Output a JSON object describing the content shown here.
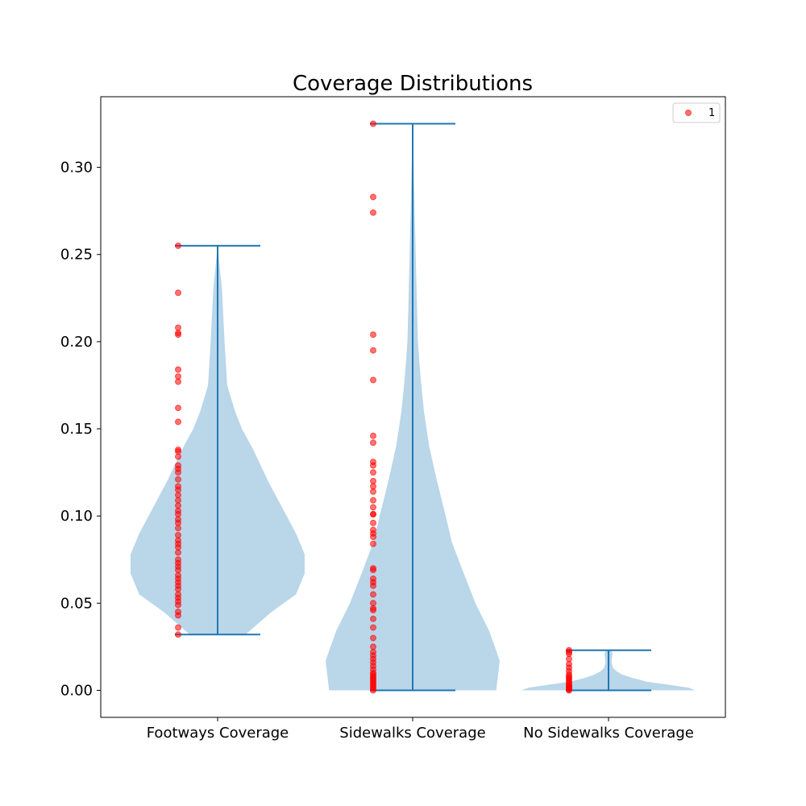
{
  "chart_data": {
    "type": "violin",
    "title": "Coverage Distributions",
    "xlabel": "",
    "ylabel": "",
    "categories": [
      "Footways Coverage",
      "Sidewalks Coverage",
      "No Sidewalks Coverage"
    ],
    "ylim": [
      -0.0155,
      0.3405
    ],
    "y_ticks": [
      0.0,
      0.05,
      0.1,
      0.15,
      0.2,
      0.25,
      0.3
    ],
    "y_tick_labels": [
      "0.00",
      "0.05",
      "0.10",
      "0.15",
      "0.20",
      "0.25",
      "0.30"
    ],
    "legend": {
      "position": "top-right",
      "entries": [
        "1"
      ]
    },
    "colors": {
      "violin_fill": "#bad6e9",
      "lines": "#1f77b4",
      "points": "#ff0000",
      "axes": "#000000"
    },
    "violins": [
      {
        "category": "Footways Coverage",
        "min": 0.032,
        "max": 0.255,
        "density_profile": [
          [
            0.032,
            0.32
          ],
          [
            0.045,
            0.62
          ],
          [
            0.055,
            0.9
          ],
          [
            0.067,
            1.0
          ],
          [
            0.078,
            1.0
          ],
          [
            0.09,
            0.9
          ],
          [
            0.105,
            0.74
          ],
          [
            0.12,
            0.58
          ],
          [
            0.138,
            0.41
          ],
          [
            0.15,
            0.28
          ],
          [
            0.16,
            0.2
          ],
          [
            0.175,
            0.11
          ],
          [
            0.2,
            0.08
          ],
          [
            0.23,
            0.05
          ],
          [
            0.255,
            0.0
          ]
        ],
        "points": [
          0.032,
          0.036,
          0.043,
          0.045,
          0.049,
          0.051,
          0.053,
          0.055,
          0.058,
          0.06,
          0.062,
          0.064,
          0.066,
          0.069,
          0.071,
          0.073,
          0.075,
          0.079,
          0.082,
          0.084,
          0.086,
          0.089,
          0.093,
          0.096,
          0.098,
          0.101,
          0.103,
          0.106,
          0.109,
          0.112,
          0.115,
          0.117,
          0.121,
          0.125,
          0.127,
          0.129,
          0.134,
          0.137,
          0.138,
          0.154,
          0.162,
          0.177,
          0.18,
          0.184,
          0.204,
          0.205,
          0.208,
          0.228,
          0.255
        ]
      },
      {
        "category": "Sidewalks Coverage",
        "min": 0.0,
        "max": 0.325,
        "density_profile": [
          [
            0.0,
            0.96
          ],
          [
            0.017,
            1.0
          ],
          [
            0.034,
            0.88
          ],
          [
            0.05,
            0.72
          ],
          [
            0.068,
            0.58
          ],
          [
            0.085,
            0.45
          ],
          [
            0.1,
            0.38
          ],
          [
            0.12,
            0.28
          ],
          [
            0.14,
            0.19
          ],
          [
            0.16,
            0.13
          ],
          [
            0.18,
            0.09
          ],
          [
            0.2,
            0.06
          ],
          [
            0.24,
            0.04
          ],
          [
            0.28,
            0.02
          ],
          [
            0.325,
            0.0
          ]
        ],
        "points": [
          0.0,
          0.001,
          0.002,
          0.003,
          0.004,
          0.005,
          0.006,
          0.007,
          0.008,
          0.009,
          0.01,
          0.012,
          0.014,
          0.016,
          0.018,
          0.02,
          0.022,
          0.025,
          0.03,
          0.036,
          0.041,
          0.046,
          0.047,
          0.05,
          0.055,
          0.06,
          0.062,
          0.064,
          0.069,
          0.07,
          0.084,
          0.088,
          0.09,
          0.092,
          0.096,
          0.101,
          0.101,
          0.105,
          0.109,
          0.114,
          0.117,
          0.12,
          0.125,
          0.129,
          0.131,
          0.142,
          0.146,
          0.178,
          0.195,
          0.204,
          0.274,
          0.283,
          0.325
        ]
      },
      {
        "category": "No Sidewalks Coverage",
        "min": 0.0,
        "max": 0.023,
        "density_profile": [
          [
            0.0,
            1.0
          ],
          [
            0.0015,
            0.92
          ],
          [
            0.003,
            0.72
          ],
          [
            0.005,
            0.44
          ],
          [
            0.007,
            0.28
          ],
          [
            0.009,
            0.16
          ],
          [
            0.011,
            0.09
          ],
          [
            0.013,
            0.05
          ],
          [
            0.016,
            0.035
          ],
          [
            0.019,
            0.04
          ],
          [
            0.021,
            0.045
          ],
          [
            0.023,
            0.03
          ]
        ],
        "points": [
          0.0,
          0.0005,
          0.001,
          0.0015,
          0.002,
          0.0025,
          0.003,
          0.004,
          0.005,
          0.006,
          0.007,
          0.008,
          0.009,
          0.011,
          0.013,
          0.015,
          0.018,
          0.021,
          0.022,
          0.023
        ]
      }
    ]
  }
}
